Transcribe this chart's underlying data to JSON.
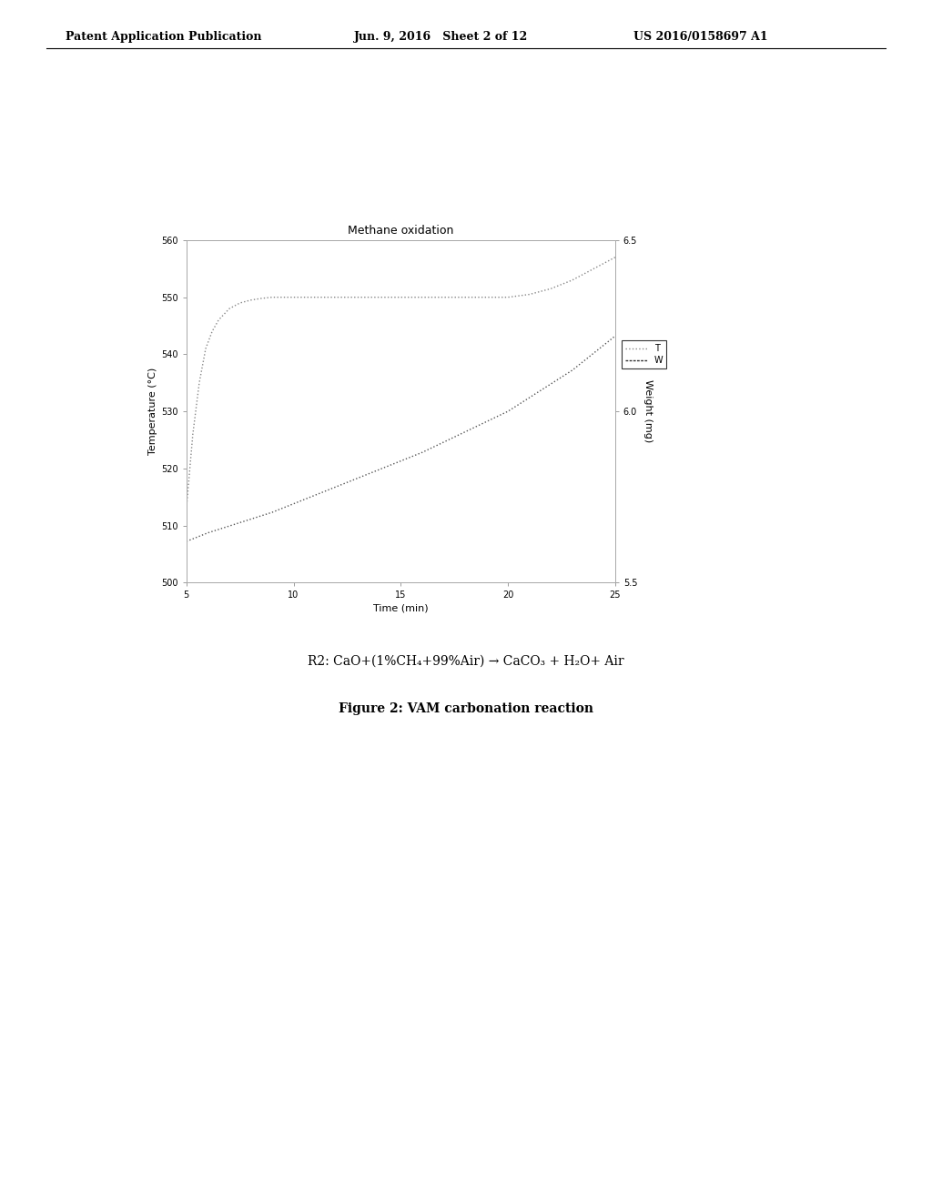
{
  "title": "Methane oxidation",
  "xlabel": "Time (min)",
  "ylabel_left": "Temperature (°C)",
  "ylabel_right": "Weight (mg)",
  "xlim": [
    5,
    25
  ],
  "ylim_left": [
    500,
    560
  ],
  "ylim_right": [
    5.5,
    6.5
  ],
  "xticks": [
    5,
    10,
    15,
    20,
    25
  ],
  "yticks_left": [
    500,
    510,
    520,
    530,
    540,
    550,
    560
  ],
  "yticks_right": [
    5.5,
    6.0,
    6.5
  ],
  "temp_x": [
    5,
    5.3,
    5.6,
    5.9,
    6.2,
    6.5,
    7.0,
    7.5,
    8.0,
    8.5,
    9.0,
    9.5,
    10,
    11,
    12,
    13,
    14,
    15,
    16,
    17,
    18,
    19,
    20,
    21,
    22,
    23,
    24,
    25
  ],
  "temp_y": [
    513,
    526,
    535,
    541,
    544,
    546,
    548,
    549,
    549.5,
    549.8,
    550,
    550,
    550,
    550,
    550,
    550,
    550,
    550,
    550,
    550,
    550,
    550,
    550,
    550.5,
    551.5,
    553,
    555,
    557
  ],
  "weight_x": [
    5,
    6,
    7,
    8,
    9,
    10,
    11,
    12,
    13,
    14,
    15,
    16,
    17,
    18,
    19,
    20,
    21,
    22,
    23,
    24,
    25
  ],
  "weight_mg_y": [
    5.62,
    5.645,
    5.665,
    5.685,
    5.705,
    5.73,
    5.755,
    5.78,
    5.805,
    5.83,
    5.855,
    5.88,
    5.91,
    5.94,
    5.97,
    6.0,
    6.04,
    6.08,
    6.12,
    6.17,
    6.22
  ],
  "legend_labels": [
    "T",
    "W"
  ],
  "header_left": "Patent Application Publication",
  "header_mid": "Jun. 9, 2016   Sheet 2 of 12",
  "header_right": "US 2016/0158697 A1",
  "equation": "R2: CaO+(1%CH₄+99%Air) → CaCO₃ + H₂O+ Air",
  "figure_caption": "Figure 2: VAM carbonation reaction",
  "background_color": "#ffffff"
}
